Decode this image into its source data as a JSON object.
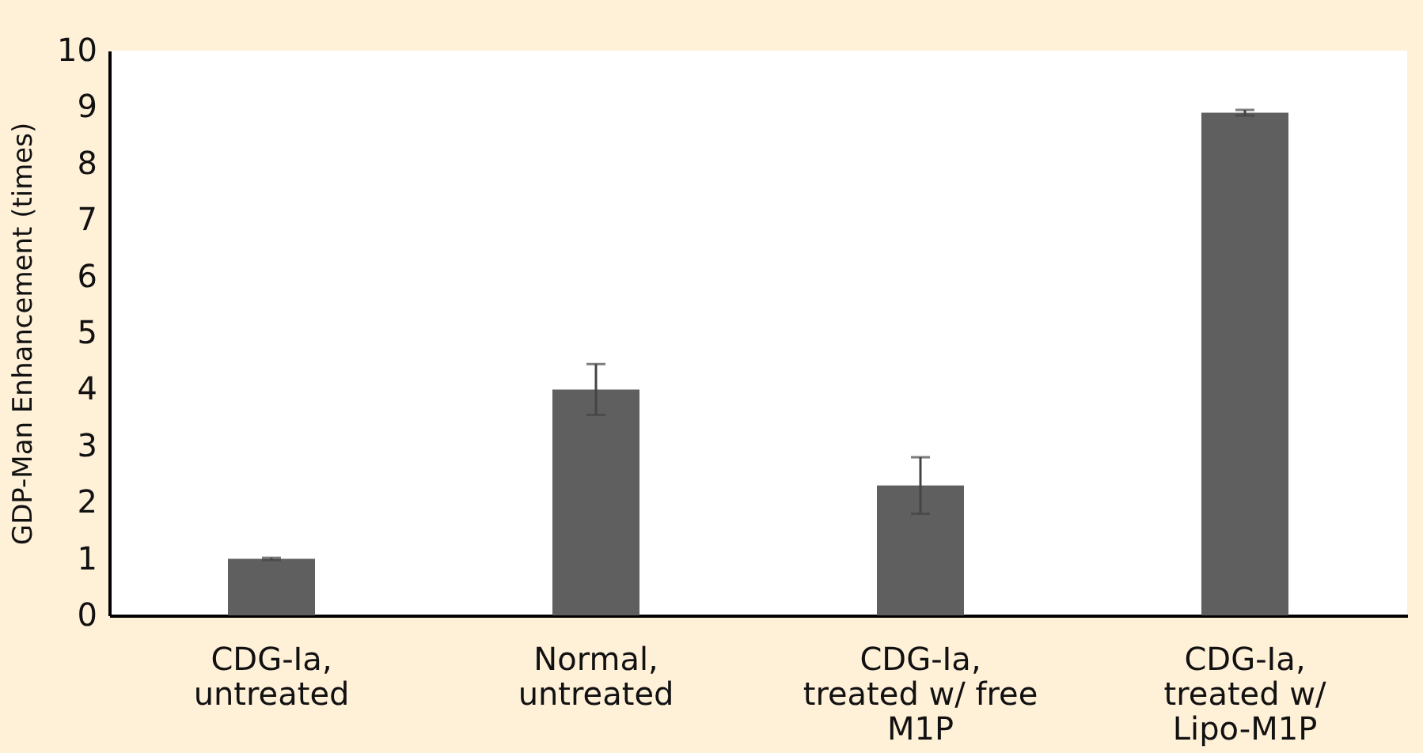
{
  "chart_data": {
    "type": "bar",
    "ylabel": "GDP-Man Enhancement (times)",
    "categories": [
      "CDG-Ia, untreated",
      "Normal, untreated",
      "CDG-Ia, treated w/ free M1P",
      "CDG-Ia, treated w/ Lipo-M1P"
    ],
    "values": [
      1.0,
      4.0,
      2.3,
      8.9
    ],
    "errors": [
      0.02,
      0.45,
      0.5,
      0.05
    ],
    "color": "#5f5f5f",
    "ylim": [
      0,
      10
    ],
    "yticks": [
      0,
      1,
      2,
      3,
      4,
      5,
      6,
      7,
      8,
      9,
      10
    ],
    "grid": false
  }
}
